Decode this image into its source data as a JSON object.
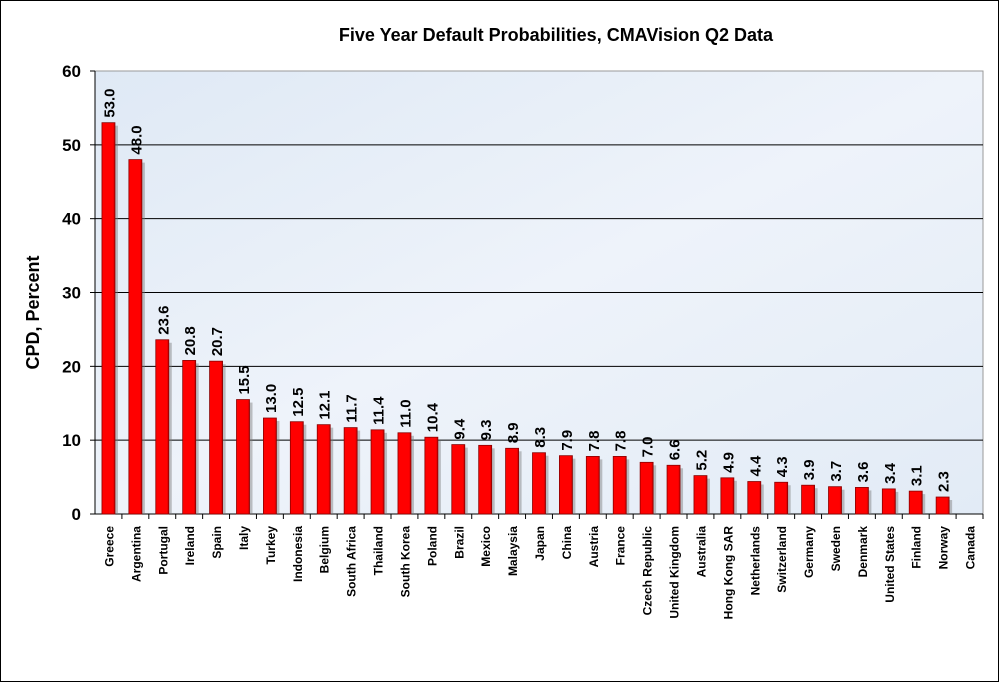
{
  "chart_data": {
    "type": "bar",
    "title": "Five Year Default Probabilities, CMAVision Q2 Data",
    "xlabel": "",
    "ylabel": "CPD, Percent",
    "ylim": [
      0,
      60
    ],
    "yticks": [
      0,
      10,
      20,
      30,
      40,
      50,
      60
    ],
    "grid": true,
    "legend": "none",
    "bar_color": "#ff0000",
    "categories": [
      "Greece",
      "Argentina",
      "Portugal",
      "Ireland",
      "Spain",
      "Italy",
      "Turkey",
      "Indonesia",
      "Belgium",
      "South Africa",
      "Thailand",
      "South Korea",
      "Poland",
      "Brazil",
      "Mexico",
      "Malaysia",
      "Japan",
      "China",
      "Austria",
      "France",
      "Czech Republic",
      "United Kingdom",
      "Australia",
      "Hong Kong SAR",
      "Netherlands",
      "Switzerland",
      "Germany",
      "Sweden",
      "Denmark",
      "United States",
      "Finland",
      "Norway",
      "Canada"
    ],
    "values": [
      53.0,
      48.0,
      23.6,
      20.8,
      20.7,
      15.5,
      13.0,
      12.5,
      12.1,
      11.7,
      11.4,
      11.0,
      10.4,
      9.4,
      9.3,
      8.9,
      8.3,
      7.9,
      7.8,
      7.8,
      7.0,
      6.6,
      5.2,
      4.9,
      4.4,
      4.3,
      3.9,
      3.7,
      3.6,
      3.4,
      3.1,
      2.3,
      null
    ],
    "data_labels": [
      "53.0",
      "48.0",
      "23.6",
      "20.8",
      "20.7",
      "15.5",
      "13.0",
      "12.5",
      "12.1",
      "11.7",
      "11.4",
      "11.0",
      "10.4",
      "9.4",
      "9.3",
      "8.9",
      "8.3",
      "7.9",
      "7.8",
      "7.8",
      "7.0",
      "6.6",
      "5.2",
      "4.9",
      "4.4",
      "4.3",
      "3.9",
      "3.7",
      "3.6",
      "3.4",
      "3.1",
      "2.3",
      ""
    ]
  }
}
